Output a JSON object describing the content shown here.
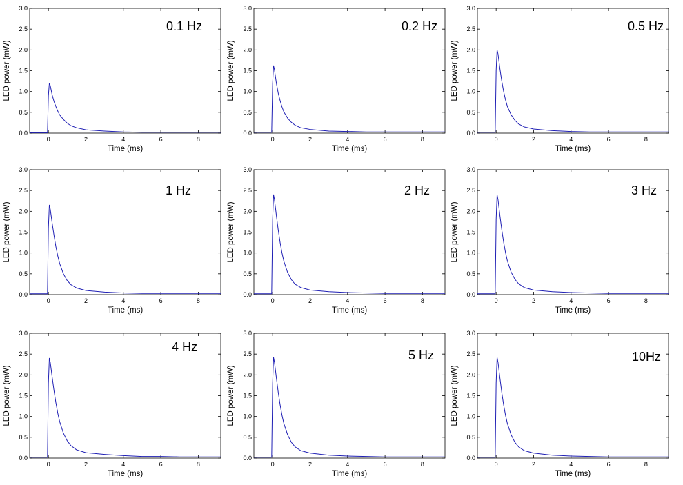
{
  "figure": {
    "series_color": "#1f1fb4",
    "axis_color": "#000000"
  },
  "chart_data": [
    {
      "type": "line",
      "label": "0.1 Hz",
      "xlabel": "Time (ms)",
      "ylabel": "LED power (mW)",
      "xlim": [
        -1,
        9.2
      ],
      "ylim": [
        0,
        3.0
      ],
      "xticks": [
        0,
        2,
        4,
        6,
        8
      ],
      "yticks": [
        0.0,
        0.5,
        1.0,
        1.5,
        2.0,
        2.5,
        3.0
      ],
      "grid": false,
      "series": [
        {
          "x": [
            -1,
            -0.05,
            0.0,
            0.05,
            0.1,
            0.2,
            0.3,
            0.4,
            0.5,
            0.6,
            0.8,
            1.0,
            1.2,
            1.5,
            2.0,
            3.0,
            4.0,
            5.0,
            6.0,
            7.0,
            8.0,
            9.2
          ],
          "y": [
            0.01,
            0.01,
            0.9,
            1.2,
            1.14,
            0.92,
            0.76,
            0.64,
            0.53,
            0.44,
            0.33,
            0.24,
            0.18,
            0.13,
            0.08,
            0.05,
            0.03,
            0.02,
            0.02,
            0.02,
            0.02,
            0.02
          ]
        }
      ]
    },
    {
      "type": "line",
      "label": "0.2 Hz",
      "xlabel": "Time (ms)",
      "ylabel": "LED power (mW)",
      "xlim": [
        -1,
        9.2
      ],
      "ylim": [
        0,
        3.0
      ],
      "xticks": [
        0,
        2,
        4,
        6,
        8
      ],
      "yticks": [
        0.0,
        0.5,
        1.0,
        1.5,
        2.0,
        2.5,
        3.0
      ],
      "grid": false,
      "series": [
        {
          "x": [
            -1,
            -0.05,
            0.0,
            0.05,
            0.1,
            0.2,
            0.3,
            0.4,
            0.5,
            0.6,
            0.8,
            1.0,
            1.2,
            1.5,
            2.0,
            3.0,
            4.0,
            5.0,
            6.0,
            7.0,
            8.0,
            9.2
          ],
          "y": [
            0.02,
            0.02,
            1.2,
            1.62,
            1.52,
            1.2,
            0.96,
            0.78,
            0.63,
            0.51,
            0.36,
            0.26,
            0.19,
            0.13,
            0.09,
            0.05,
            0.04,
            0.03,
            0.03,
            0.03,
            0.03,
            0.03
          ]
        }
      ]
    },
    {
      "type": "line",
      "label": "0.5 Hz",
      "xlabel": "Time (ms)",
      "ylabel": "LED power (mW)",
      "xlim": [
        -1,
        9.2
      ],
      "ylim": [
        0,
        3.0
      ],
      "xticks": [
        0,
        2,
        4,
        6,
        8
      ],
      "yticks": [
        0.0,
        0.5,
        1.0,
        1.5,
        2.0,
        2.5,
        3.0
      ],
      "grid": false,
      "series": [
        {
          "x": [
            -1,
            -0.05,
            0.0,
            0.05,
            0.1,
            0.2,
            0.3,
            0.4,
            0.5,
            0.6,
            0.8,
            1.0,
            1.2,
            1.5,
            2.0,
            3.0,
            4.0,
            5.0,
            6.0,
            7.0,
            8.0,
            9.2
          ],
          "y": [
            0.02,
            0.02,
            1.5,
            2.0,
            1.9,
            1.55,
            1.25,
            1.0,
            0.8,
            0.64,
            0.44,
            0.31,
            0.22,
            0.15,
            0.1,
            0.06,
            0.04,
            0.03,
            0.03,
            0.03,
            0.03,
            0.03
          ]
        }
      ]
    },
    {
      "type": "line",
      "label": "1 Hz",
      "xlabel": "Time (ms)",
      "ylabel": "LED power (mW)",
      "xlim": [
        -1,
        9.2
      ],
      "ylim": [
        0,
        3.0
      ],
      "xticks": [
        0,
        2,
        4,
        6,
        8
      ],
      "yticks": [
        0.0,
        0.5,
        1.0,
        1.5,
        2.0,
        2.5,
        3.0
      ],
      "grid": false,
      "series": [
        {
          "x": [
            -1,
            -0.05,
            0.0,
            0.05,
            0.1,
            0.2,
            0.3,
            0.4,
            0.5,
            0.6,
            0.8,
            1.0,
            1.2,
            1.5,
            2.0,
            3.0,
            4.0,
            5.0,
            6.0,
            7.0,
            8.0,
            9.2
          ],
          "y": [
            0.02,
            0.02,
            1.6,
            2.15,
            2.05,
            1.72,
            1.42,
            1.15,
            0.93,
            0.75,
            0.5,
            0.34,
            0.24,
            0.16,
            0.1,
            0.06,
            0.04,
            0.03,
            0.03,
            0.03,
            0.03,
            0.03
          ]
        }
      ]
    },
    {
      "type": "line",
      "label": "2 Hz",
      "xlabel": "Time (ms)",
      "ylabel": "LED power (mW)",
      "xlim": [
        -1,
        9.2
      ],
      "ylim": [
        0,
        3.0
      ],
      "xticks": [
        0,
        2,
        4,
        6,
        8
      ],
      "yticks": [
        0.0,
        0.5,
        1.0,
        1.5,
        2.0,
        2.5,
        3.0
      ],
      "grid": false,
      "series": [
        {
          "x": [
            -1,
            -0.05,
            0.0,
            0.05,
            0.1,
            0.2,
            0.3,
            0.4,
            0.5,
            0.6,
            0.8,
            1.0,
            1.2,
            1.5,
            2.0,
            3.0,
            4.0,
            5.0,
            6.0,
            7.0,
            8.0,
            9.2
          ],
          "y": [
            0.02,
            0.02,
            1.8,
            2.4,
            2.28,
            1.9,
            1.55,
            1.25,
            1.0,
            0.8,
            0.53,
            0.36,
            0.25,
            0.17,
            0.11,
            0.07,
            0.05,
            0.04,
            0.03,
            0.03,
            0.03,
            0.03
          ]
        }
      ]
    },
    {
      "type": "line",
      "label": "3 Hz",
      "xlabel": "Time (ms)",
      "ylabel": "LED power (mW)",
      "xlim": [
        -1,
        9.2
      ],
      "ylim": [
        0,
        3.0
      ],
      "xticks": [
        0,
        2,
        4,
        6,
        8
      ],
      "yticks": [
        0.0,
        0.5,
        1.0,
        1.5,
        2.0,
        2.5,
        3.0
      ],
      "grid": false,
      "series": [
        {
          "x": [
            -1,
            -0.05,
            0.0,
            0.05,
            0.1,
            0.2,
            0.3,
            0.4,
            0.5,
            0.6,
            0.8,
            1.0,
            1.2,
            1.5,
            2.0,
            3.0,
            4.0,
            5.0,
            6.0,
            7.0,
            8.0,
            9.2
          ],
          "y": [
            0.02,
            0.02,
            1.8,
            2.4,
            2.28,
            1.9,
            1.56,
            1.26,
            1.01,
            0.81,
            0.54,
            0.37,
            0.26,
            0.17,
            0.11,
            0.07,
            0.05,
            0.04,
            0.03,
            0.03,
            0.03,
            0.03
          ]
        }
      ]
    },
    {
      "type": "line",
      "label": "4 Hz",
      "xlabel": "Time (ms)",
      "ylabel": "LED power (mW)",
      "xlim": [
        -1,
        9.2
      ],
      "ylim": [
        0,
        3.0
      ],
      "xticks": [
        0,
        2,
        4,
        6,
        8
      ],
      "yticks": [
        0.0,
        0.5,
        1.0,
        1.5,
        2.0,
        2.5,
        3.0
      ],
      "grid": false,
      "series": [
        {
          "x": [
            -1,
            -0.05,
            0.0,
            0.05,
            0.1,
            0.2,
            0.3,
            0.4,
            0.5,
            0.6,
            0.8,
            1.0,
            1.2,
            1.5,
            2.0,
            3.0,
            4.0,
            5.0,
            6.0,
            7.0,
            8.0,
            9.2
          ],
          "y": [
            0.02,
            0.02,
            1.8,
            2.4,
            2.3,
            1.95,
            1.62,
            1.33,
            1.08,
            0.88,
            0.6,
            0.42,
            0.3,
            0.2,
            0.13,
            0.09,
            0.06,
            0.04,
            0.04,
            0.03,
            0.03,
            0.03
          ]
        }
      ]
    },
    {
      "type": "line",
      "label": "5 Hz",
      "xlabel": "Time (ms)",
      "ylabel": "LED power (mW)",
      "xlim": [
        -1,
        9.2
      ],
      "ylim": [
        0,
        3.0
      ],
      "xticks": [
        0,
        2,
        4,
        6,
        8
      ],
      "yticks": [
        0.0,
        0.5,
        1.0,
        1.5,
        2.0,
        2.5,
        3.0
      ],
      "grid": false,
      "series": [
        {
          "x": [
            -1,
            -0.05,
            0.0,
            0.05,
            0.1,
            0.2,
            0.3,
            0.4,
            0.5,
            0.6,
            0.8,
            1.0,
            1.2,
            1.5,
            2.0,
            3.0,
            4.0,
            5.0,
            6.0,
            7.0,
            8.0,
            9.2
          ],
          "y": [
            0.02,
            0.02,
            1.8,
            2.42,
            2.3,
            1.93,
            1.58,
            1.28,
            1.03,
            0.83,
            0.56,
            0.38,
            0.27,
            0.18,
            0.12,
            0.07,
            0.05,
            0.04,
            0.03,
            0.03,
            0.03,
            0.03
          ]
        }
      ]
    },
    {
      "type": "line",
      "label": "10Hz",
      "xlabel": "Time (ms)",
      "ylabel": "LED power (mW)",
      "xlim": [
        -1,
        9.2
      ],
      "ylim": [
        0,
        3.0
      ],
      "xticks": [
        0,
        2,
        4,
        6,
        8
      ],
      "yticks": [
        0.0,
        0.5,
        1.0,
        1.5,
        2.0,
        2.5,
        3.0
      ],
      "grid": false,
      "series": [
        {
          "x": [
            -1,
            -0.05,
            0.0,
            0.05,
            0.1,
            0.2,
            0.3,
            0.4,
            0.5,
            0.6,
            0.8,
            1.0,
            1.2,
            1.5,
            2.0,
            3.0,
            4.0,
            5.0,
            6.0,
            7.0,
            8.0,
            9.2
          ],
          "y": [
            0.02,
            0.02,
            1.8,
            2.42,
            2.3,
            1.93,
            1.58,
            1.28,
            1.03,
            0.83,
            0.56,
            0.38,
            0.27,
            0.18,
            0.12,
            0.07,
            0.05,
            0.04,
            0.03,
            0.03,
            0.03,
            0.03
          ]
        }
      ]
    }
  ]
}
